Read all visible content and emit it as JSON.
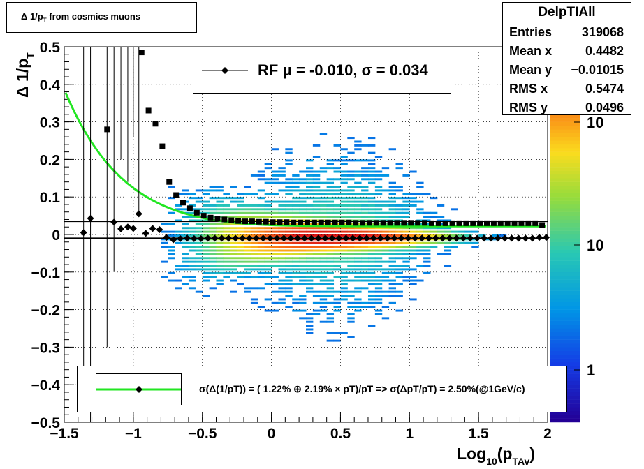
{
  "title": "Δ 1/p_T from cosmics muons",
  "stats": {
    "name": "DelpTIAll",
    "rows": [
      {
        "key": "Entries",
        "value": "319068"
      },
      {
        "key": "Mean x",
        "value": "0.4482"
      },
      {
        "key": "Mean y",
        "value": "−0.01015"
      },
      {
        "key": "RMS x",
        "value": "0.5474"
      },
      {
        "key": "RMS y",
        "value": "0.0496"
      }
    ]
  },
  "legend_rf": "RF μ = -0.010, σ =   0.034",
  "legend_fit": "σ(Δ(1/pT)) = ( 1.22% ⊕  2.19% × pT)/pT => σ(ΔpT/pT) =  2.50%(@1GeV/c)",
  "colorbar_labels": [
    "10",
    "10",
    "1"
  ],
  "chart_data": {
    "type": "heatmap",
    "xlabel": "Log10(p_TAv)",
    "ylabel": "Δ 1/p_T",
    "xlim": [
      -1.5,
      2
    ],
    "ylim": [
      -0.5,
      0.5
    ],
    "xticks": [
      "−1.5",
      "−1",
      "−0.5",
      "0",
      "0.5",
      "1",
      "1.5",
      "2"
    ],
    "yticks": [
      "0.5",
      "0.4",
      "0.3",
      "0.2",
      "0.1",
      "0",
      "−0.1",
      "−0.2",
      "−0.3",
      "−0.4",
      "−0.5"
    ],
    "rf_mean_points": {
      "x": [
        -1.36,
        -1.31,
        -1.14,
        -1.09,
        -1.04,
        -1.0,
        -0.96,
        -0.91,
        -0.86,
        -0.81,
        -0.76,
        -0.71,
        -0.66,
        -0.61,
        -0.56,
        -0.51,
        -0.46,
        -0.41,
        -0.36,
        -0.31,
        -0.26,
        -0.21,
        -0.16,
        -0.11,
        -0.06,
        -0.01,
        0.04,
        0.09,
        0.14,
        0.19,
        0.24,
        0.29,
        0.34,
        0.39,
        0.44,
        0.49,
        0.54,
        0.59,
        0.64,
        0.69,
        0.74,
        0.79,
        0.84,
        0.89,
        0.94,
        0.99,
        1.04,
        1.09,
        1.14,
        1.19,
        1.24,
        1.29,
        1.34,
        1.39,
        1.44,
        1.49,
        1.54,
        1.59,
        1.64,
        1.69,
        1.74,
        1.79,
        1.84,
        1.89,
        1.94,
        1.99
      ],
      "y": [
        0.005,
        0.043,
        0.033,
        0.015,
        0.02,
        0.016,
        0.055,
        0.003,
        0.016,
        0.013,
        -0.008,
        -0.014,
        -0.011,
        -0.01,
        -0.011,
        -0.011,
        -0.01,
        -0.01,
        -0.01,
        -0.01,
        -0.01,
        -0.01,
        -0.01,
        -0.01,
        -0.01,
        -0.01,
        -0.01,
        -0.01,
        -0.01,
        -0.01,
        -0.01,
        -0.01,
        -0.01,
        -0.01,
        -0.01,
        -0.01,
        -0.01,
        -0.01,
        -0.01,
        -0.01,
        -0.01,
        -0.01,
        -0.01,
        -0.01,
        -0.01,
        -0.01,
        -0.01,
        -0.01,
        -0.01,
        -0.01,
        -0.01,
        -0.01,
        -0.01,
        -0.01,
        -0.01,
        -0.01,
        -0.01,
        -0.01,
        -0.01,
        -0.01,
        -0.01,
        -0.01,
        -0.01,
        -0.01,
        -0.008,
        -0.008
      ]
    },
    "sigma_points": {
      "x": [
        -1.19,
        -0.94,
        -0.89,
        -0.84,
        -0.79,
        -0.74,
        -0.69,
        -0.64,
        -0.59,
        -0.54,
        -0.49,
        -0.44,
        -0.39,
        -0.34,
        -0.29,
        -0.24,
        -0.19,
        -0.14,
        -0.09,
        -0.04,
        0.01,
        0.06,
        0.11,
        0.16,
        0.21,
        0.26,
        0.31,
        0.36,
        0.41,
        0.46,
        0.51,
        0.56,
        0.61,
        0.66,
        0.71,
        0.76,
        0.81,
        0.86,
        0.91,
        0.96,
        1.01,
        1.06,
        1.11,
        1.16,
        1.21,
        1.26,
        1.31,
        1.36,
        1.41,
        1.46,
        1.51,
        1.56,
        1.61,
        1.66,
        1.71,
        1.76,
        1.81,
        1.86,
        1.91,
        1.96
      ],
      "y": [
        0.28,
        0.485,
        0.33,
        0.295,
        0.235,
        0.14,
        0.105,
        0.085,
        0.07,
        0.058,
        0.05,
        0.045,
        0.042,
        0.04,
        0.038,
        0.036,
        0.035,
        0.035,
        0.034,
        0.034,
        0.033,
        0.033,
        0.033,
        0.032,
        0.032,
        0.032,
        0.032,
        0.032,
        0.032,
        0.032,
        0.032,
        0.032,
        0.031,
        0.031,
        0.031,
        0.031,
        0.031,
        0.031,
        0.031,
        0.031,
        0.031,
        0.031,
        0.031,
        0.03,
        0.03,
        0.03,
        0.03,
        0.03,
        0.03,
        0.03,
        0.03,
        0.03,
        0.03,
        0.03,
        0.03,
        0.03,
        0.03,
        0.03,
        0.03,
        0.025
      ]
    },
    "fit_curve": {
      "a": 0.0122,
      "b": 0.0219
    },
    "mean_lines": [
      0.035,
      -0.01
    ]
  }
}
